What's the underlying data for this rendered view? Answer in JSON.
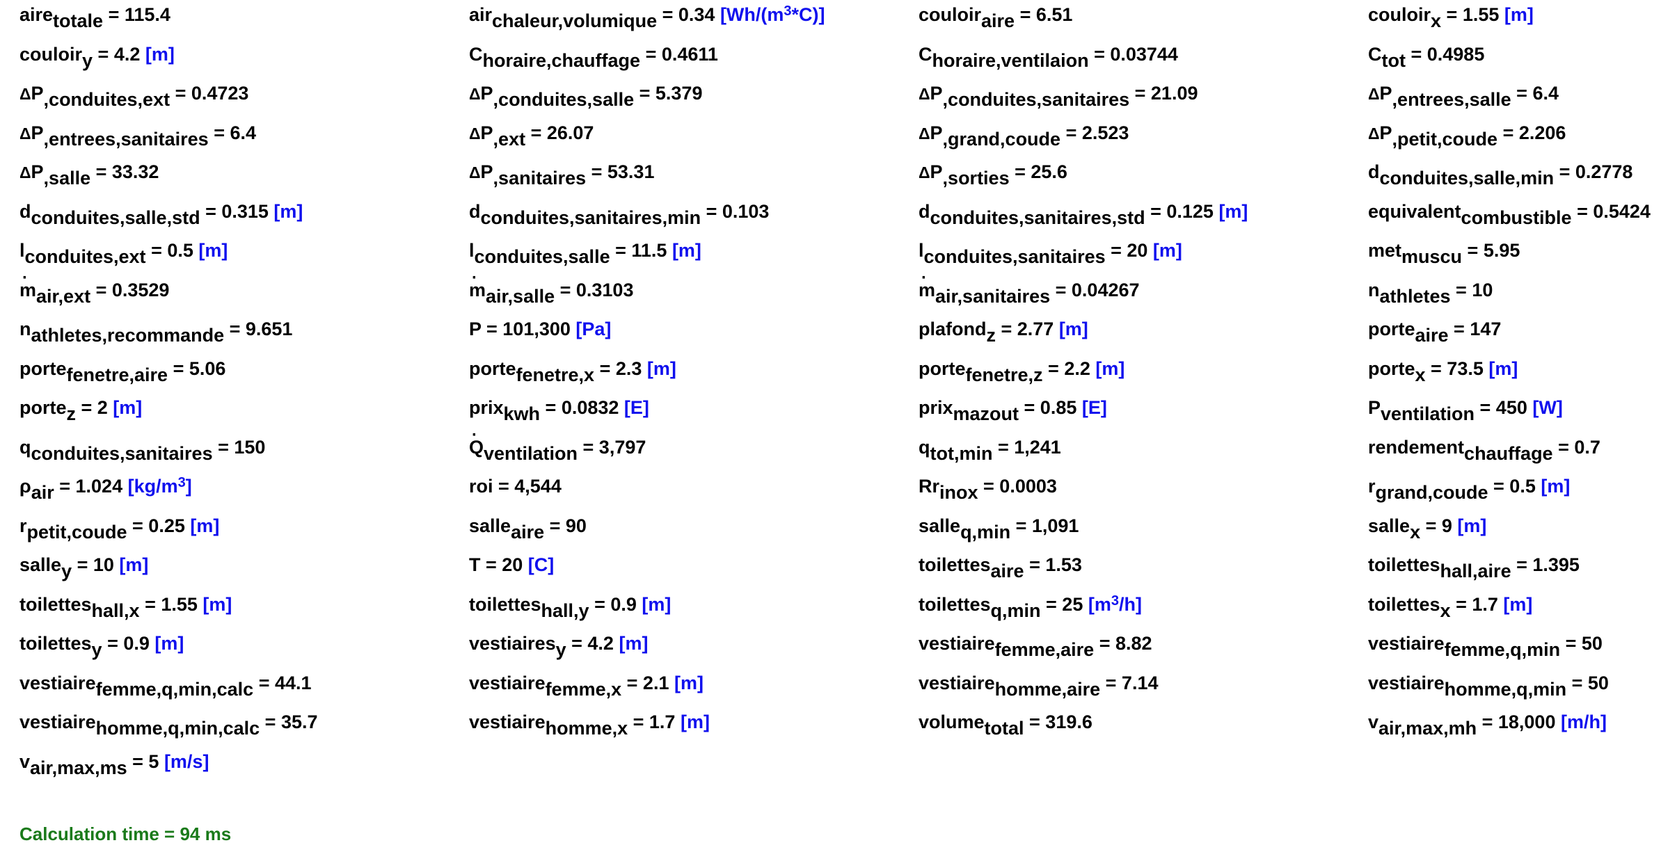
{
  "variables": [
    {
      "html": "aire<sub>totale</sub> = 115.4",
      "unit": ""
    },
    {
      "html": "air<sub>chaleur,volumique</sub> = 0.34 ",
      "unit": "[Wh/(m<sup>3</sup>*C)]"
    },
    {
      "html": "couloir<sub>aire</sub> = 6.51",
      "unit": ""
    },
    {
      "html": "couloir<sub>x</sub> = 1.55 ",
      "unit": "[m]"
    },
    {
      "html": "couloir<sub>y</sub> = 4.2 ",
      "unit": "[m]"
    },
    {
      "html": "C<sub>horaire,chauffage</sub> = 0.4611",
      "unit": ""
    },
    {
      "html": "C<sub>horaire,ventilaion</sub> = 0.03744",
      "unit": ""
    },
    {
      "html": "C<sub>tot</sub> = 0.4985",
      "unit": ""
    },
    {
      "html": "<span class=\"d\">Δ</span>P<sub>,conduites,ext</sub> = 0.4723",
      "unit": ""
    },
    {
      "html": "<span class=\"d\">Δ</span>P<sub>,conduites,salle</sub> = 5.379",
      "unit": ""
    },
    {
      "html": "<span class=\"d\">Δ</span>P<sub>,conduites,sanitaires</sub> = 21.09",
      "unit": ""
    },
    {
      "html": "<span class=\"d\">Δ</span>P<sub>,entrees,salle</sub> = 6.4",
      "unit": ""
    },
    {
      "html": "<span class=\"d\">Δ</span>P<sub>,entrees,sanitaires</sub> = 6.4",
      "unit": ""
    },
    {
      "html": "<span class=\"d\">Δ</span>P<sub>,ext</sub> = 26.07",
      "unit": ""
    },
    {
      "html": "<span class=\"d\">Δ</span>P<sub>,grand,coude</sub> = 2.523",
      "unit": ""
    },
    {
      "html": "<span class=\"d\">Δ</span>P<sub>,petit,coude</sub> = 2.206",
      "unit": ""
    },
    {
      "html": "<span class=\"d\">Δ</span>P<sub>,salle</sub> = 33.32",
      "unit": ""
    },
    {
      "html": "<span class=\"d\">Δ</span>P<sub>,sanitaires</sub> = 53.31",
      "unit": ""
    },
    {
      "html": "<span class=\"d\">Δ</span>P<sub>,sorties</sub> = 25.6",
      "unit": ""
    },
    {
      "html": "d<sub>conduites,salle,min</sub> = 0.2778",
      "unit": ""
    },
    {
      "html": "d<sub>conduites,salle,std</sub> = 0.315 ",
      "unit": "[m]"
    },
    {
      "html": "d<sub>conduites,sanitaires,min</sub> = 0.103",
      "unit": ""
    },
    {
      "html": "d<sub>conduites,sanitaires,std</sub> = 0.125 ",
      "unit": "[m]"
    },
    {
      "html": "equivalent<sub>combustible</sub> = 0.5424",
      "unit": ""
    },
    {
      "html": "l<sub>conduites,ext</sub> = 0.5 ",
      "unit": "[m]"
    },
    {
      "html": "l<sub>conduites,salle</sub> = 11.5 ",
      "unit": "[m]"
    },
    {
      "html": "l<sub>conduites,sanitaires</sub> = 20 ",
      "unit": "[m]"
    },
    {
      "html": "met<sub>muscu</sub> = 5.95",
      "unit": ""
    },
    {
      "html": "<span class=\"dot\">m</span><sub>air,ext</sub> = 0.3529",
      "unit": ""
    },
    {
      "html": "<span class=\"dot\">m</span><sub>air,salle</sub> = 0.3103",
      "unit": ""
    },
    {
      "html": "<span class=\"dot\">m</span><sub>air,sanitaires</sub> = 0.04267",
      "unit": ""
    },
    {
      "html": "n<sub>athletes</sub> = 10",
      "unit": ""
    },
    {
      "html": "n<sub>athletes,recommande</sub> = 9.651",
      "unit": ""
    },
    {
      "html": "P = 101,300 ",
      "unit": "[Pa]"
    },
    {
      "html": "plafond<sub>z</sub> = 2.77 ",
      "unit": "[m]"
    },
    {
      "html": "porte<sub>aire</sub> = 147",
      "unit": ""
    },
    {
      "html": "porte<sub>fenetre,aire</sub> = 5.06",
      "unit": ""
    },
    {
      "html": "porte<sub>fenetre,x</sub> = 2.3 ",
      "unit": "[m]"
    },
    {
      "html": "porte<sub>fenetre,z</sub> = 2.2 ",
      "unit": "[m]"
    },
    {
      "html": "porte<sub>x</sub> = 73.5 ",
      "unit": "[m]"
    },
    {
      "html": "porte<sub>z</sub> = 2 ",
      "unit": "[m]"
    },
    {
      "html": "prix<sub>kwh</sub> = 0.0832 ",
      "unit": "[E]"
    },
    {
      "html": "prix<sub>mazout</sub> = 0.85 ",
      "unit": "[E]"
    },
    {
      "html": "P<sub>ventilation</sub> = 450 ",
      "unit": "[W]"
    },
    {
      "html": "q<sub>conduites,sanitaires</sub> = 150",
      "unit": ""
    },
    {
      "html": "<span class=\"dot\">Q</span><sub>ventilation</sub> = 3,797",
      "unit": ""
    },
    {
      "html": "q<sub>tot,min</sub> = 1,241",
      "unit": ""
    },
    {
      "html": "rendement<sub>chauffage</sub> = 0.7",
      "unit": ""
    },
    {
      "html": "ρ<sub>air</sub> = 1.024 ",
      "unit": "[kg/m<sup>3</sup>]"
    },
    {
      "html": "roi = 4,544",
      "unit": ""
    },
    {
      "html": "Rr<sub>inox</sub> = 0.0003",
      "unit": ""
    },
    {
      "html": "r<sub>grand,coude</sub> = 0.5 ",
      "unit": "[m]"
    },
    {
      "html": "r<sub>petit,coude</sub> = 0.25 ",
      "unit": "[m]"
    },
    {
      "html": "salle<sub>aire</sub> = 90",
      "unit": ""
    },
    {
      "html": "salle<sub>q,min</sub> = 1,091",
      "unit": ""
    },
    {
      "html": "salle<sub>x</sub> = 9 ",
      "unit": "[m]"
    },
    {
      "html": "salle<sub>y</sub> = 10 ",
      "unit": "[m]"
    },
    {
      "html": "T = 20 ",
      "unit": "[C]"
    },
    {
      "html": "toilettes<sub>aire</sub> = 1.53",
      "unit": ""
    },
    {
      "html": "toilettes<sub>hall,aire</sub> = 1.395",
      "unit": ""
    },
    {
      "html": "toilettes<sub>hall,x</sub> = 1.55 ",
      "unit": "[m]"
    },
    {
      "html": "toilettes<sub>hall,y</sub> = 0.9 ",
      "unit": "[m]"
    },
    {
      "html": "toilettes<sub>q,min</sub> = 25 ",
      "unit": "[m<sup>3</sup>/h]"
    },
    {
      "html": "toilettes<sub>x</sub> = 1.7 ",
      "unit": "[m]"
    },
    {
      "html": "toilettes<sub>y</sub> = 0.9 ",
      "unit": "[m]"
    },
    {
      "html": "vestiaires<sub>y</sub> = 4.2 ",
      "unit": "[m]"
    },
    {
      "html": "vestiaire<sub>femme,aire</sub> = 8.82",
      "unit": ""
    },
    {
      "html": "vestiaire<sub>femme,q,min</sub> = 50",
      "unit": ""
    },
    {
      "html": "vestiaire<sub>femme,q,min,calc</sub> = 44.1",
      "unit": ""
    },
    {
      "html": "vestiaire<sub>femme,x</sub> = 2.1 ",
      "unit": "[m]"
    },
    {
      "html": "vestiaire<sub>homme,aire</sub> = 7.14",
      "unit": ""
    },
    {
      "html": "vestiaire<sub>homme,q,min</sub> = 50",
      "unit": ""
    },
    {
      "html": "vestiaire<sub>homme,q,min,calc</sub> = 35.7",
      "unit": ""
    },
    {
      "html": "vestiaire<sub>homme,x</sub> = 1.7 ",
      "unit": "[m]"
    },
    {
      "html": "volume<sub>total</sub> = 319.6",
      "unit": ""
    },
    {
      "html": "v<sub>air,max,mh</sub> = 18,000 ",
      "unit": "[m/h]"
    },
    {
      "html": "v<sub>air,max,ms</sub> = 5 ",
      "unit": "[m/s]"
    }
  ],
  "status": {
    "calc_time": "Calculation time = 94 ms"
  },
  "colors": {
    "unit": "#1010ee",
    "status": "#1a7a1a",
    "text": "#000000"
  }
}
